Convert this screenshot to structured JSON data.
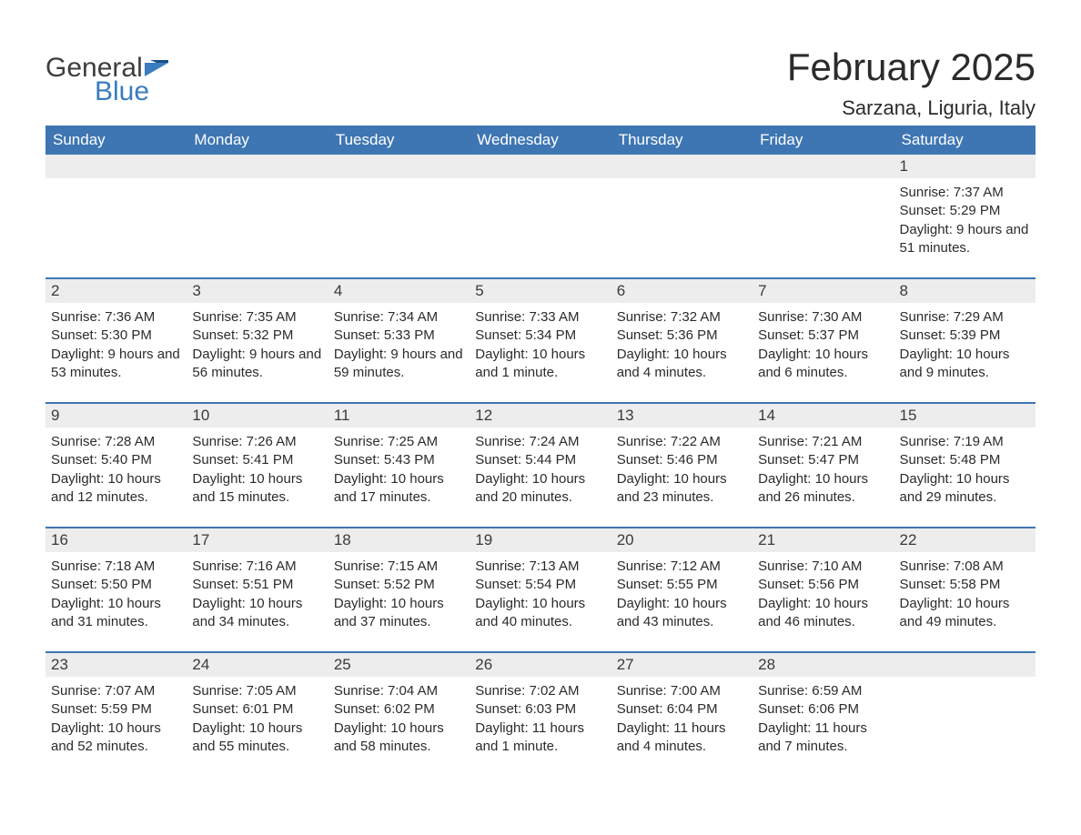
{
  "logo": {
    "word1": "General",
    "word2": "Blue",
    "accent_color": "#3a7cbf",
    "text_color": "#3d3d3d"
  },
  "title": "February 2025",
  "location": "Sarzana, Liguria, Italy",
  "colors": {
    "header_bg": "#3e76b3",
    "header_text": "#ffffff",
    "daynum_bg": "#ededed",
    "text": "#2b2b2b",
    "week_divider": "#3e76b3",
    "page_bg": "#ffffff"
  },
  "weekday_labels": [
    "Sunday",
    "Monday",
    "Tuesday",
    "Wednesday",
    "Thursday",
    "Friday",
    "Saturday"
  ],
  "weeks": [
    [
      {
        "empty": true
      },
      {
        "empty": true
      },
      {
        "empty": true
      },
      {
        "empty": true
      },
      {
        "empty": true
      },
      {
        "empty": true
      },
      {
        "day": "1",
        "sunrise": "Sunrise: 7:37 AM",
        "sunset": "Sunset: 5:29 PM",
        "daylight": "Daylight: 9 hours and 51 minutes."
      }
    ],
    [
      {
        "day": "2",
        "sunrise": "Sunrise: 7:36 AM",
        "sunset": "Sunset: 5:30 PM",
        "daylight": "Daylight: 9 hours and 53 minutes."
      },
      {
        "day": "3",
        "sunrise": "Sunrise: 7:35 AM",
        "sunset": "Sunset: 5:32 PM",
        "daylight": "Daylight: 9 hours and 56 minutes."
      },
      {
        "day": "4",
        "sunrise": "Sunrise: 7:34 AM",
        "sunset": "Sunset: 5:33 PM",
        "daylight": "Daylight: 9 hours and 59 minutes."
      },
      {
        "day": "5",
        "sunrise": "Sunrise: 7:33 AM",
        "sunset": "Sunset: 5:34 PM",
        "daylight": "Daylight: 10 hours and 1 minute."
      },
      {
        "day": "6",
        "sunrise": "Sunrise: 7:32 AM",
        "sunset": "Sunset: 5:36 PM",
        "daylight": "Daylight: 10 hours and 4 minutes."
      },
      {
        "day": "7",
        "sunrise": "Sunrise: 7:30 AM",
        "sunset": "Sunset: 5:37 PM",
        "daylight": "Daylight: 10 hours and 6 minutes."
      },
      {
        "day": "8",
        "sunrise": "Sunrise: 7:29 AM",
        "sunset": "Sunset: 5:39 PM",
        "daylight": "Daylight: 10 hours and 9 minutes."
      }
    ],
    [
      {
        "day": "9",
        "sunrise": "Sunrise: 7:28 AM",
        "sunset": "Sunset: 5:40 PM",
        "daylight": "Daylight: 10 hours and 12 minutes."
      },
      {
        "day": "10",
        "sunrise": "Sunrise: 7:26 AM",
        "sunset": "Sunset: 5:41 PM",
        "daylight": "Daylight: 10 hours and 15 minutes."
      },
      {
        "day": "11",
        "sunrise": "Sunrise: 7:25 AM",
        "sunset": "Sunset: 5:43 PM",
        "daylight": "Daylight: 10 hours and 17 minutes."
      },
      {
        "day": "12",
        "sunrise": "Sunrise: 7:24 AM",
        "sunset": "Sunset: 5:44 PM",
        "daylight": "Daylight: 10 hours and 20 minutes."
      },
      {
        "day": "13",
        "sunrise": "Sunrise: 7:22 AM",
        "sunset": "Sunset: 5:46 PM",
        "daylight": "Daylight: 10 hours and 23 minutes."
      },
      {
        "day": "14",
        "sunrise": "Sunrise: 7:21 AM",
        "sunset": "Sunset: 5:47 PM",
        "daylight": "Daylight: 10 hours and 26 minutes."
      },
      {
        "day": "15",
        "sunrise": "Sunrise: 7:19 AM",
        "sunset": "Sunset: 5:48 PM",
        "daylight": "Daylight: 10 hours and 29 minutes."
      }
    ],
    [
      {
        "day": "16",
        "sunrise": "Sunrise: 7:18 AM",
        "sunset": "Sunset: 5:50 PM",
        "daylight": "Daylight: 10 hours and 31 minutes."
      },
      {
        "day": "17",
        "sunrise": "Sunrise: 7:16 AM",
        "sunset": "Sunset: 5:51 PM",
        "daylight": "Daylight: 10 hours and 34 minutes."
      },
      {
        "day": "18",
        "sunrise": "Sunrise: 7:15 AM",
        "sunset": "Sunset: 5:52 PM",
        "daylight": "Daylight: 10 hours and 37 minutes."
      },
      {
        "day": "19",
        "sunrise": "Sunrise: 7:13 AM",
        "sunset": "Sunset: 5:54 PM",
        "daylight": "Daylight: 10 hours and 40 minutes."
      },
      {
        "day": "20",
        "sunrise": "Sunrise: 7:12 AM",
        "sunset": "Sunset: 5:55 PM",
        "daylight": "Daylight: 10 hours and 43 minutes."
      },
      {
        "day": "21",
        "sunrise": "Sunrise: 7:10 AM",
        "sunset": "Sunset: 5:56 PM",
        "daylight": "Daylight: 10 hours and 46 minutes."
      },
      {
        "day": "22",
        "sunrise": "Sunrise: 7:08 AM",
        "sunset": "Sunset: 5:58 PM",
        "daylight": "Daylight: 10 hours and 49 minutes."
      }
    ],
    [
      {
        "day": "23",
        "sunrise": "Sunrise: 7:07 AM",
        "sunset": "Sunset: 5:59 PM",
        "daylight": "Daylight: 10 hours and 52 minutes."
      },
      {
        "day": "24",
        "sunrise": "Sunrise: 7:05 AM",
        "sunset": "Sunset: 6:01 PM",
        "daylight": "Daylight: 10 hours and 55 minutes."
      },
      {
        "day": "25",
        "sunrise": "Sunrise: 7:04 AM",
        "sunset": "Sunset: 6:02 PM",
        "daylight": "Daylight: 10 hours and 58 minutes."
      },
      {
        "day": "26",
        "sunrise": "Sunrise: 7:02 AM",
        "sunset": "Sunset: 6:03 PM",
        "daylight": "Daylight: 11 hours and 1 minute."
      },
      {
        "day": "27",
        "sunrise": "Sunrise: 7:00 AM",
        "sunset": "Sunset: 6:04 PM",
        "daylight": "Daylight: 11 hours and 4 minutes."
      },
      {
        "day": "28",
        "sunrise": "Sunrise: 6:59 AM",
        "sunset": "Sunset: 6:06 PM",
        "daylight": "Daylight: 11 hours and 7 minutes."
      },
      {
        "empty": true
      }
    ]
  ]
}
